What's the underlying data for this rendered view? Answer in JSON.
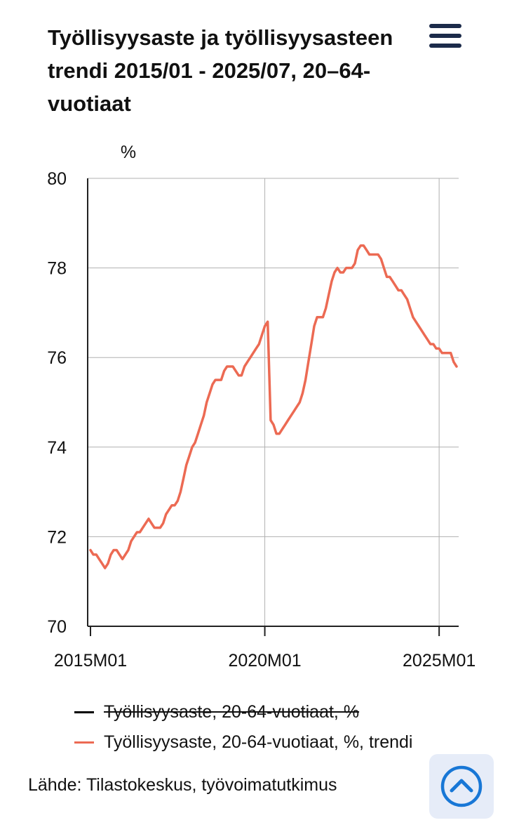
{
  "title": "Työllisyysaste ja työllisyysasteen trendi 2015/01 - 2025/07, 20–64-vuotiaat",
  "menu": {
    "icon": "hamburger-menu-icon"
  },
  "source": "Lähde: Tilastokeskus, työvoimatutkimus",
  "scroll_top": {
    "icon": "chevron-up-circle-icon"
  },
  "colors": {
    "trend": "#ec6a53",
    "rate": "#000000",
    "grid": "#b0b0b0",
    "menu": "#1c2b4a",
    "accent": "#1877d6"
  },
  "chart_data": {
    "type": "line",
    "title": "Työllisyysaste ja työllisyysasteen trendi 2015/01 - 2025/07, 20–64-vuotiaat",
    "ylabel": "%",
    "ylim": [
      70,
      80
    ],
    "yticks": [
      "70",
      "72",
      "74",
      "76",
      "78",
      "80"
    ],
    "xticks": [
      "2015M01",
      "2020M01",
      "2025M01"
    ],
    "xrange": [
      "2015M01",
      "2025M07"
    ],
    "grid": true,
    "legend_position": "bottom",
    "series": [
      {
        "name": "Työllisyysaste, 20-64-vuotiaat, %",
        "color": "#000000",
        "hidden": true,
        "points": []
      },
      {
        "name": "Työllisyysaste, 20-64-vuotiaat, %, trendi",
        "color": "#ec6a53",
        "hidden": false,
        "points": [
          [
            "2015M01",
            71.7
          ],
          [
            "2015M02",
            71.6
          ],
          [
            "2015M03",
            71.6
          ],
          [
            "2015M04",
            71.5
          ],
          [
            "2015M05",
            71.4
          ],
          [
            "2015M06",
            71.3
          ],
          [
            "2015M07",
            71.4
          ],
          [
            "2015M08",
            71.6
          ],
          [
            "2015M09",
            71.7
          ],
          [
            "2015M10",
            71.7
          ],
          [
            "2015M11",
            71.6
          ],
          [
            "2015M12",
            71.5
          ],
          [
            "2016M01",
            71.6
          ],
          [
            "2016M02",
            71.7
          ],
          [
            "2016M03",
            71.9
          ],
          [
            "2016M04",
            72.0
          ],
          [
            "2016M05",
            72.1
          ],
          [
            "2016M06",
            72.1
          ],
          [
            "2016M07",
            72.2
          ],
          [
            "2016M08",
            72.3
          ],
          [
            "2016M09",
            72.4
          ],
          [
            "2016M10",
            72.3
          ],
          [
            "2016M11",
            72.2
          ],
          [
            "2016M12",
            72.2
          ],
          [
            "2017M01",
            72.2
          ],
          [
            "2017M02",
            72.3
          ],
          [
            "2017M03",
            72.5
          ],
          [
            "2017M04",
            72.6
          ],
          [
            "2017M05",
            72.7
          ],
          [
            "2017M06",
            72.7
          ],
          [
            "2017M07",
            72.8
          ],
          [
            "2017M08",
            73.0
          ],
          [
            "2017M09",
            73.3
          ],
          [
            "2017M10",
            73.6
          ],
          [
            "2017M11",
            73.8
          ],
          [
            "2017M12",
            74.0
          ],
          [
            "2018M01",
            74.1
          ],
          [
            "2018M02",
            74.3
          ],
          [
            "2018M03",
            74.5
          ],
          [
            "2018M04",
            74.7
          ],
          [
            "2018M05",
            75.0
          ],
          [
            "2018M06",
            75.2
          ],
          [
            "2018M07",
            75.4
          ],
          [
            "2018M08",
            75.5
          ],
          [
            "2018M09",
            75.5
          ],
          [
            "2018M10",
            75.5
          ],
          [
            "2018M11",
            75.7
          ],
          [
            "2018M12",
            75.8
          ],
          [
            "2019M01",
            75.8
          ],
          [
            "2019M02",
            75.8
          ],
          [
            "2019M03",
            75.7
          ],
          [
            "2019M04",
            75.6
          ],
          [
            "2019M05",
            75.6
          ],
          [
            "2019M06",
            75.8
          ],
          [
            "2019M07",
            75.9
          ],
          [
            "2019M08",
            76.0
          ],
          [
            "2019M09",
            76.1
          ],
          [
            "2019M10",
            76.2
          ],
          [
            "2019M11",
            76.3
          ],
          [
            "2019M12",
            76.5
          ],
          [
            "2020M01",
            76.7
          ],
          [
            "2020M02",
            76.8
          ],
          [
            "2020M03",
            74.6
          ],
          [
            "2020M04",
            74.5
          ],
          [
            "2020M05",
            74.3
          ],
          [
            "2020M06",
            74.3
          ],
          [
            "2020M07",
            74.4
          ],
          [
            "2020M08",
            74.5
          ],
          [
            "2020M09",
            74.6
          ],
          [
            "2020M10",
            74.7
          ],
          [
            "2020M11",
            74.8
          ],
          [
            "2020M12",
            74.9
          ],
          [
            "2021M01",
            75.0
          ],
          [
            "2021M02",
            75.2
          ],
          [
            "2021M03",
            75.5
          ],
          [
            "2021M04",
            75.9
          ],
          [
            "2021M05",
            76.3
          ],
          [
            "2021M06",
            76.7
          ],
          [
            "2021M07",
            76.9
          ],
          [
            "2021M08",
            76.9
          ],
          [
            "2021M09",
            76.9
          ],
          [
            "2021M10",
            77.1
          ],
          [
            "2021M11",
            77.4
          ],
          [
            "2021M12",
            77.7
          ],
          [
            "2022M01",
            77.9
          ],
          [
            "2022M02",
            78.0
          ],
          [
            "2022M03",
            77.9
          ],
          [
            "2022M04",
            77.9
          ],
          [
            "2022M05",
            78.0
          ],
          [
            "2022M06",
            78.0
          ],
          [
            "2022M07",
            78.0
          ],
          [
            "2022M08",
            78.1
          ],
          [
            "2022M09",
            78.4
          ],
          [
            "2022M10",
            78.5
          ],
          [
            "2022M11",
            78.5
          ],
          [
            "2022M12",
            78.4
          ],
          [
            "2023M01",
            78.3
          ],
          [
            "2023M02",
            78.3
          ],
          [
            "2023M03",
            78.3
          ],
          [
            "2023M04",
            78.3
          ],
          [
            "2023M05",
            78.2
          ],
          [
            "2023M06",
            78.0
          ],
          [
            "2023M07",
            77.8
          ],
          [
            "2023M08",
            77.8
          ],
          [
            "2023M09",
            77.7
          ],
          [
            "2023M10",
            77.6
          ],
          [
            "2023M11",
            77.5
          ],
          [
            "2023M12",
            77.5
          ],
          [
            "2024M01",
            77.4
          ],
          [
            "2024M02",
            77.3
          ],
          [
            "2024M03",
            77.1
          ],
          [
            "2024M04",
            76.9
          ],
          [
            "2024M05",
            76.8
          ],
          [
            "2024M06",
            76.7
          ],
          [
            "2024M07",
            76.6
          ],
          [
            "2024M08",
            76.5
          ],
          [
            "2024M09",
            76.4
          ],
          [
            "2024M10",
            76.3
          ],
          [
            "2024M11",
            76.3
          ],
          [
            "2024M12",
            76.2
          ],
          [
            "2025M01",
            76.2
          ],
          [
            "2025M02",
            76.1
          ],
          [
            "2025M03",
            76.1
          ],
          [
            "2025M04",
            76.1
          ],
          [
            "2025M05",
            76.1
          ],
          [
            "2025M06",
            75.9
          ],
          [
            "2025M07",
            75.8
          ]
        ]
      }
    ]
  }
}
